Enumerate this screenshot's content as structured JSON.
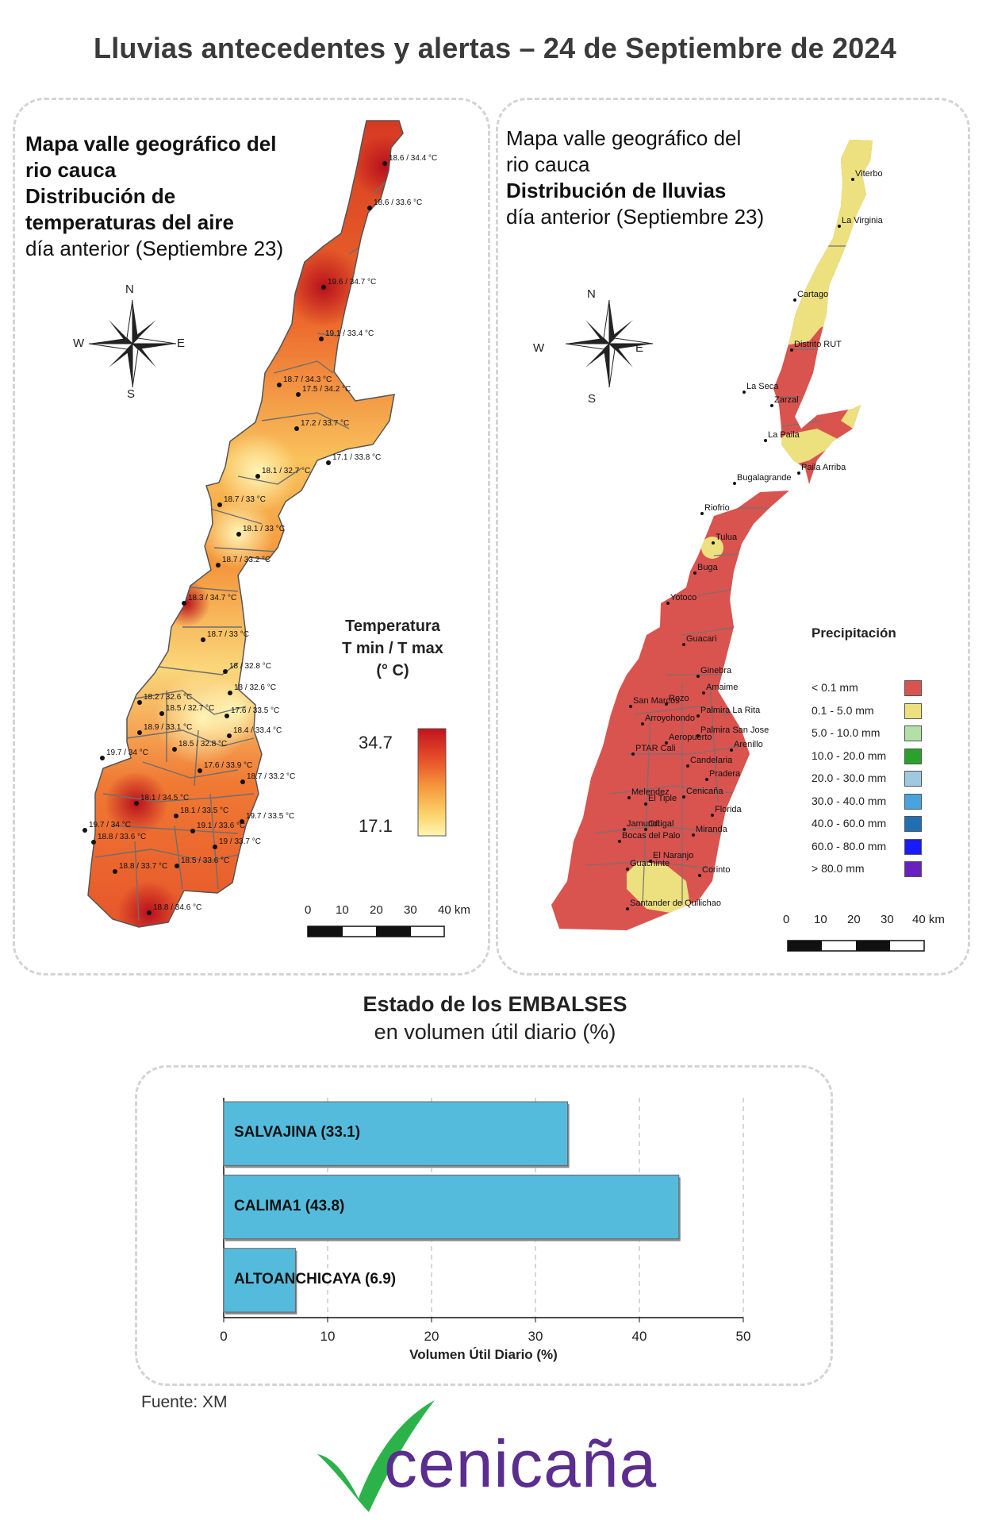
{
  "title": "Lluvias antecedentes y alertas – 24 de Septiembre de 2024",
  "temp_map": {
    "title_lines": [
      "Mapa valle geográfico del",
      "rio cauca",
      "Distribución de",
      "temperaturas del aire"
    ],
    "subtitle": "día anterior (Septiembre 23)",
    "compass": {
      "n": "N",
      "s": "S",
      "e": "E",
      "w": "W"
    },
    "legend": {
      "line1": "Temperatura",
      "line2": "T min / T max",
      "line3": "(° C)",
      "max": "34.7",
      "min": "17.1",
      "colors": [
        "#c3121e",
        "#e8532b",
        "#f69a3c",
        "#fcd36b",
        "#fff6b3"
      ]
    },
    "scale": [
      "0",
      "10",
      "20",
      "30",
      "40 km"
    ],
    "stations": [
      "18.6 / 34.4 °C",
      "18.6 / 33.6 °C",
      "19.6 / 34.7 °C",
      "19.1 / 33.4 °C",
      "18.7 / 34.3 °C",
      "17.5 / 34.2 °C",
      "17.2 / 33.7 °C",
      "17.1 / 33.8 °C",
      "18.1 / 32.7 °C",
      "18.7 / 33 °C",
      "18.1 / 33 °C",
      "18.7 / 33.2 °C",
      "18.3 / 34.7 °C",
      "18.7 / 33 °C",
      "18 / 32.8 °C",
      "18 / 32.6 °C",
      "18.2 / 32.6 °C",
      "18.5 / 32.7 °C",
      "17.6 / 33.5 °C",
      "18.9 / 33.1 °C",
      "18.4 / 33.4 °C",
      "18.5 / 32.8 °C",
      "19.7 / 34 °C",
      "17.6 / 33.9 °C",
      "18.7 / 33.2 °C",
      "18.1 / 34.5 °C",
      "18.1 / 33.5 °C",
      "19.7 / 33.5 °C",
      "19.7 / 34 °C",
      "19.1 / 33.6 °C",
      "18.8 / 33.6 °C",
      "19 / 33.7 °C",
      "18.8 / 33.7 °C",
      "18.5 / 33.6 °C",
      "18.8 / 34.6 °C"
    ]
  },
  "rain_map": {
    "title_lines": [
      "Mapa valle geográfico del",
      "rio cauca"
    ],
    "title_bold": "Distribución de lluvias",
    "subtitle": "día anterior (Septiembre 23)",
    "compass": {
      "n": "N",
      "s": "S",
      "e": "E",
      "w": "W"
    },
    "stations": [
      "Viterbo",
      "La Virginia",
      "Cartago",
      "Distrito RUT",
      "La Seca",
      "Zarzal",
      "La Paila",
      "Bugalagrande",
      "Paila Arriba",
      "Riofrio",
      "Tulua",
      "Buga",
      "Yotoco",
      "Guacari",
      "Ginebra",
      "Amaime",
      "San Marcos",
      "Rozo",
      "Palmira La Rita",
      "Arroyohondo",
      "Palmira San Jose",
      "Aeropuerto",
      "Arenillo",
      "PTAR Cali",
      "Candelaria",
      "Pradera",
      "Melendez",
      "El Tiple",
      "Cenicaña",
      "Florida",
      "Jamundi",
      "Bocas del Palo",
      "Ortigal",
      "Miranda",
      "El Naranjo",
      "Guachinte",
      "Corinto",
      "Santander de Quilichao"
    ],
    "legend_title": "Precipitación",
    "legend": [
      {
        "label": "< 0.1 mm",
        "color": "#d9534f"
      },
      {
        "label": "0.1 - 5.0 mm",
        "color": "#ece07f"
      },
      {
        "label": "5.0 - 10.0 mm",
        "color": "#b3e0a6"
      },
      {
        "label": "10.0 - 20.0 mm",
        "color": "#2ca02c"
      },
      {
        "label": "20.0 - 30.0 mm",
        "color": "#9ecae1"
      },
      {
        "label": "30.0 - 40.0 mm",
        "color": "#4aa3df"
      },
      {
        "label": "40.0 - 60.0 mm",
        "color": "#1f6fb2"
      },
      {
        "label": "60.0 - 80.0 mm",
        "color": "#1a1aff"
      },
      {
        "label": "> 80.0 mm",
        "color": "#6a1fc0"
      }
    ],
    "scale": [
      "0",
      "10",
      "20",
      "30",
      "40 km"
    ]
  },
  "reservoirs": {
    "title": "Estado de los EMBALSES",
    "subtitle": "en volumen útil diario (%)",
    "chart_data": {
      "type": "bar",
      "orientation": "horizontal",
      "categories": [
        "SALVAJINA (33.1)",
        "CALIMA1 (43.8)",
        "ALTOANCHICAYA (6.9)"
      ],
      "values": [
        33.1,
        43.8,
        6.9
      ],
      "xlabel": "Volumen Útil Diario (%)",
      "xlim": [
        0,
        50
      ],
      "xticks": [
        "0",
        "10",
        "20",
        "30",
        "40",
        "50"
      ],
      "grid": true,
      "bar_color": "#55bbdc"
    }
  },
  "source": "Fuente: XM",
  "logo_text": "cenicaña",
  "logo_colors": {
    "check": "#2bb34a",
    "text": "#5b2d8e"
  }
}
